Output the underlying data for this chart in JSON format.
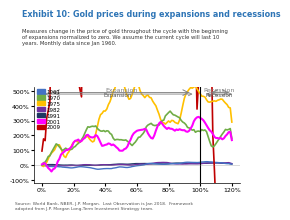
{
  "title": "Exhibit 10: Gold prices during expansions and recessions",
  "subtitle": "Measures change in the price of gold throughout the cycle with the beginning\nof expansions normalized to zero. We assume the current cycle will last 10\nyears. Monthly data since Jan 1960.",
  "source": "Source: World Bank, NBER, J.P. Morgan.  Last Observation is Jan 2018.  Framework\nadopted from J.P. Morgan Long-Term Investment Strategy team.",
  "xlabel": "",
  "ylabel": "",
  "xlim": [
    -5,
    125
  ],
  "ylim": [
    -120,
    530
  ],
  "vline_x": 100,
  "expansion_label": "Expansion",
  "recession_label": "Recession",
  "yticks": [
    -100,
    0,
    100,
    200,
    300,
    400,
    500
  ],
  "xticks": [
    0,
    20,
    40,
    60,
    80,
    100,
    120
  ],
  "title_color": "#2E75B6",
  "background_color": "#ffffff",
  "series": {
    "1961": {
      "color": "#4472C4",
      "linewidth": 1.0
    },
    "1970": {
      "color": "#70AD47",
      "linewidth": 1.2
    },
    "1975": {
      "color": "#FFC000",
      "linewidth": 1.2
    },
    "1982": {
      "color": "#7030A0",
      "linewidth": 1.0
    },
    "1991": {
      "color": "#1F3864",
      "linewidth": 1.0
    },
    "2001": {
      "color": "#FF00FF",
      "linewidth": 1.5
    },
    "2009": {
      "color": "#C00000",
      "linewidth": 1.2
    }
  }
}
